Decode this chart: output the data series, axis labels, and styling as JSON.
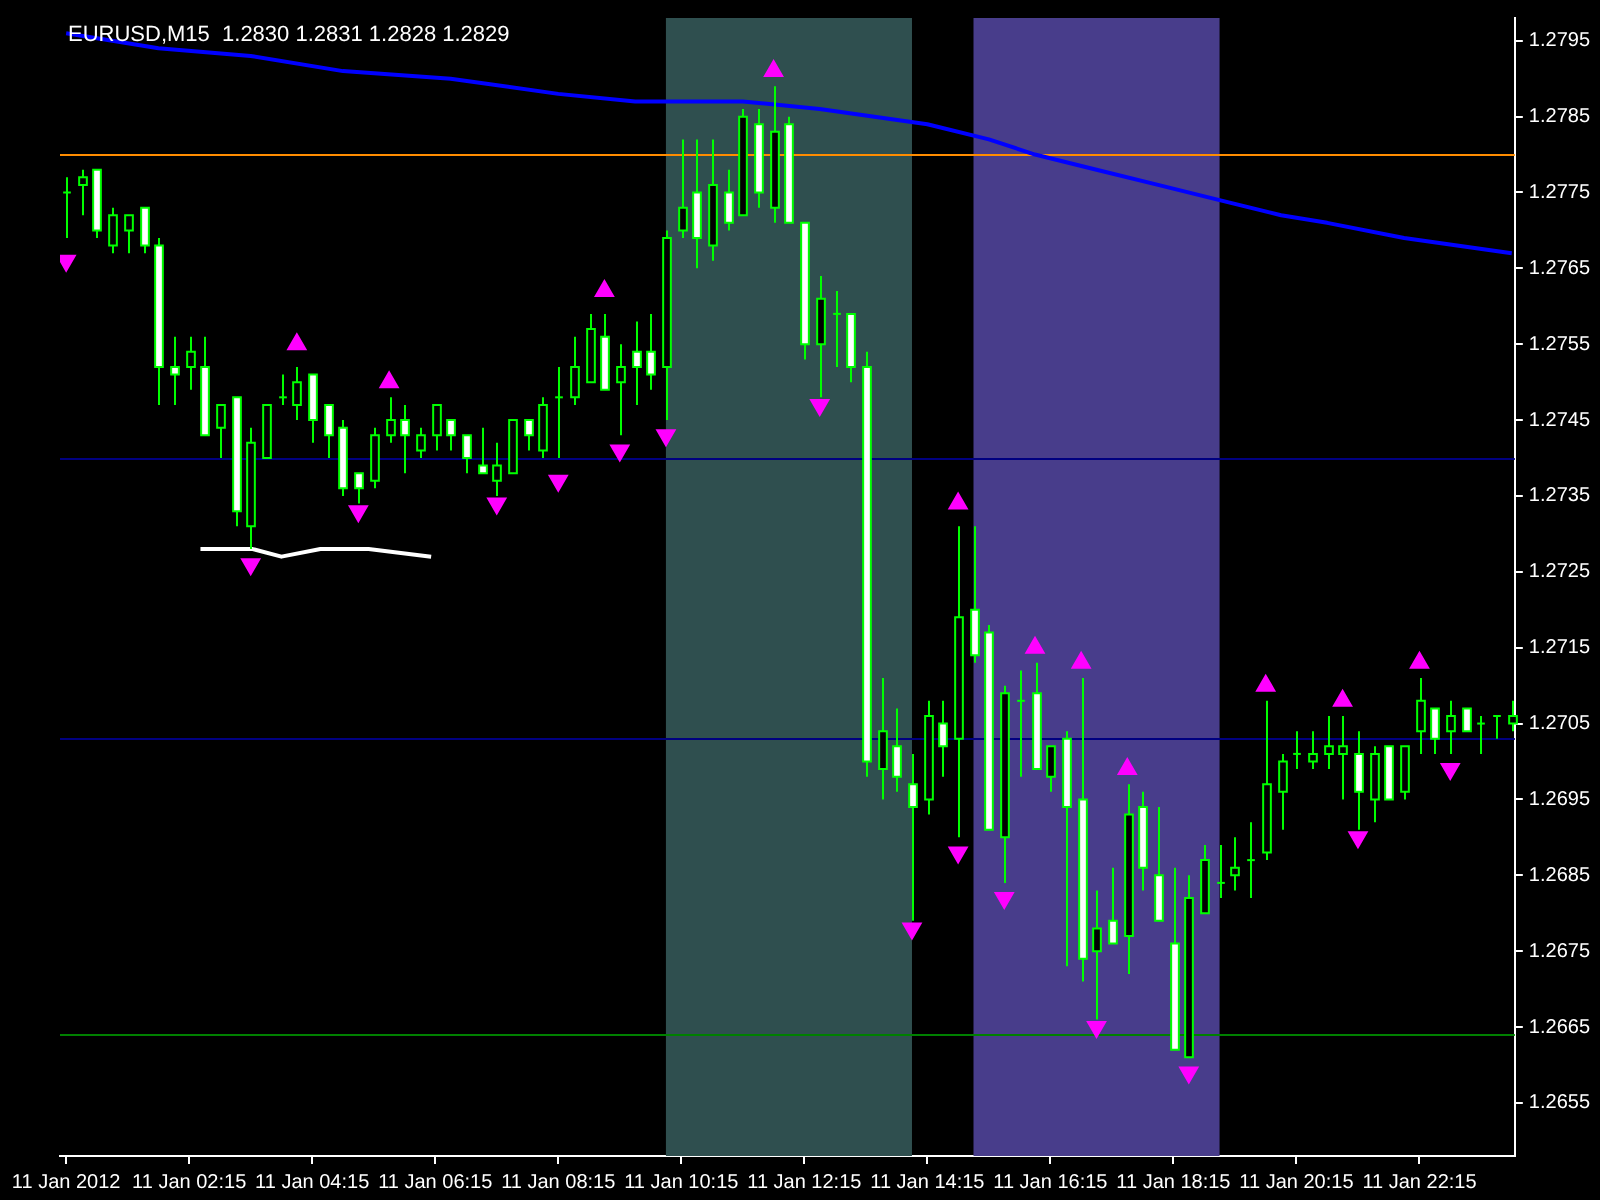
{
  "chart_data": {
    "type": "candlestick",
    "title": "EURUSD,M15  1.2830 1.2831 1.2828 1.2829",
    "color": "#00ff00",
    "colors": [
      "#00ff00",
      "#000000",
      "#ffffff",
      "#000000",
      "#000000",
      "#ffffff",
      "#ffffff",
      "#ffffff",
      "#000000",
      "#ffffff",
      "#000000",
      "#ffffff",
      "#000000",
      "#000000",
      "#00ff00",
      "#000000",
      "#ffffff",
      "#ffffff",
      "#ffffff",
      "#ffffff",
      "#000000",
      "#000000",
      "#ffffff",
      "#000000",
      "#000000",
      "#ffffff",
      "#ffffff",
      "#ffffff",
      "#000000",
      "#000000",
      "#ffffff",
      "#000000",
      "#00ff00",
      "#000000",
      "#000000",
      "#ffffff",
      "#000000",
      "#ffffff",
      "#ffffff",
      "#000000",
      "#000000",
      "#ffffff",
      "#000000",
      "#ffffff",
      "#000000",
      "#ffffff",
      "#000000",
      "#ffffff",
      "#ffffff",
      "#000000",
      "#00ff00",
      "#ffffff",
      "#ffffff",
      "#000000",
      "#ffffff",
      "#ffffff",
      "#000000",
      "#ffffff",
      "#000000",
      "#ffffff",
      "#ffffff",
      "#000000",
      "#00ff00",
      "#ffffff",
      "#000000",
      "#ffffff",
      "#ffffff",
      "#000000",
      "#ffffff",
      "#000000",
      "#ffffff",
      "#ffffff",
      "#ffffff",
      "#000000",
      "#000000",
      "#00ff00",
      "#000000",
      "#00ff00",
      "#000000",
      "#000000",
      "#00ff00",
      "#000000",
      "#000000",
      "#000000",
      "#ffffff",
      "#000000",
      "#ffffff",
      "#000000",
      "#000000",
      "#ffffff",
      "#000000",
      "#ffffff",
      "#00ff00",
      "#00ff00",
      "#000000"
    ],
    "x": [
      "2012-01-11T00:15",
      "2012-01-11T00:30",
      "2012-01-11T00:45",
      "2012-01-11T01:00",
      "2012-01-11T01:15",
      "2012-01-11T01:30",
      "2012-01-11T01:45",
      "2012-01-11T02:00",
      "2012-01-11T02:15",
      "2012-01-11T02:30",
      "2012-01-11T02:45",
      "2012-01-11T03:00",
      "2012-01-11T03:15",
      "2012-01-11T03:30",
      "2012-01-11T03:45",
      "2012-01-11T04:00",
      "2012-01-11T04:15",
      "2012-01-11T04:30",
      "2012-01-11T04:45",
      "2012-01-11T05:00",
      "2012-01-11T05:15",
      "2012-01-11T05:30",
      "2012-01-11T05:45",
      "2012-01-11T06:00",
      "2012-01-11T06:15",
      "2012-01-11T06:30",
      "2012-01-11T06:45",
      "2012-01-11T07:00",
      "2012-01-11T07:15",
      "2012-01-11T07:30",
      "2012-01-11T07:45",
      "2012-01-11T08:00",
      "2012-01-11T08:15",
      "2012-01-11T08:30",
      "2012-01-11T08:45",
      "2012-01-11T09:00",
      "2012-01-11T09:15",
      "2012-01-11T09:30",
      "2012-01-11T09:45",
      "2012-01-11T10:00",
      "2012-01-11T10:15",
      "2012-01-11T10:30",
      "2012-01-11T10:45",
      "2012-01-11T11:00",
      "2012-01-11T11:15",
      "2012-01-11T11:30",
      "2012-01-11T11:45",
      "2012-01-11T12:00",
      "2012-01-11T12:15",
      "2012-01-11T12:30",
      "2012-01-11T12:45",
      "2012-01-11T13:00",
      "2012-01-11T13:15",
      "2012-01-11T13:30",
      "2012-01-11T13:45",
      "2012-01-11T14:00",
      "2012-01-11T14:15",
      "2012-01-11T14:30",
      "2012-01-11T14:45",
      "2012-01-11T15:00",
      "2012-01-11T15:15",
      "2012-01-11T15:30",
      "2012-01-11T15:45",
      "2012-01-11T16:00",
      "2012-01-11T16:15",
      "2012-01-11T16:30",
      "2012-01-11T16:45",
      "2012-01-11T17:00",
      "2012-01-11T17:15",
      "2012-01-11T17:30",
      "2012-01-11T17:45",
      "2012-01-11T18:00",
      "2012-01-11T18:15",
      "2012-01-11T18:30",
      "2012-01-11T18:45",
      "2012-01-11T19:00",
      "2012-01-11T19:15",
      "2012-01-11T19:30",
      "2012-01-11T19:45",
      "2012-01-11T20:00",
      "2012-01-11T20:15",
      "2012-01-11T20:30",
      "2012-01-11T20:45",
      "2012-01-11T21:00",
      "2012-01-11T21:15",
      "2012-01-11T21:30",
      "2012-01-11T21:45",
      "2012-01-11T22:00",
      "2012-01-11T22:15",
      "2012-01-11T22:30",
      "2012-01-11T22:45",
      "2012-01-11T23:00",
      "2012-01-11T23:15",
      "2012-01-11T23:30",
      "2012-01-11T23:45"
    ],
    "ohlc": [
      [
        1.2775,
        1.2777,
        1.2769,
        1.2775
      ],
      [
        1.2776,
        1.2778,
        1.2772,
        1.2777
      ],
      [
        1.2778,
        1.2778,
        1.2769,
        1.277
      ],
      [
        1.2768,
        1.2773,
        1.2767,
        1.2772
      ],
      [
        1.277,
        1.2772,
        1.2767,
        1.2772
      ],
      [
        1.2773,
        1.2773,
        1.2767,
        1.2768
      ],
      [
        1.2768,
        1.2769,
        1.2747,
        1.2752
      ],
      [
        1.2752,
        1.2756,
        1.2747,
        1.2751
      ],
      [
        1.2752,
        1.2756,
        1.2749,
        1.2754
      ],
      [
        1.2752,
        1.2756,
        1.2743,
        1.2743
      ],
      [
        1.2744,
        1.2747,
        1.274,
        1.2747
      ],
      [
        1.2748,
        1.2748,
        1.2731,
        1.2733
      ],
      [
        1.2731,
        1.2744,
        1.2728,
        1.2742
      ],
      [
        1.274,
        1.2747,
        1.274,
        1.2747
      ],
      [
        1.2748,
        1.2751,
        1.2747,
        1.2748
      ],
      [
        1.2747,
        1.2752,
        1.2745,
        1.275
      ],
      [
        1.2751,
        1.2751,
        1.2742,
        1.2745
      ],
      [
        1.2747,
        1.2747,
        1.274,
        1.2743
      ],
      [
        1.2744,
        1.2745,
        1.2735,
        1.2736
      ],
      [
        1.2738,
        1.2738,
        1.2734,
        1.2736
      ],
      [
        1.2737,
        1.2744,
        1.2736,
        1.2743
      ],
      [
        1.2743,
        1.2748,
        1.2742,
        1.2745
      ],
      [
        1.2745,
        1.2747,
        1.2738,
        1.2743
      ],
      [
        1.2741,
        1.2744,
        1.274,
        1.2743
      ],
      [
        1.2743,
        1.2747,
        1.2741,
        1.2747
      ],
      [
        1.2745,
        1.2745,
        1.2741,
        1.2743
      ],
      [
        1.2743,
        1.2743,
        1.2738,
        1.274
      ],
      [
        1.2739,
        1.2744,
        1.2738,
        1.2738
      ],
      [
        1.2737,
        1.2742,
        1.2735,
        1.2739
      ],
      [
        1.2738,
        1.2745,
        1.2738,
        1.2745
      ],
      [
        1.2745,
        1.2745,
        1.2741,
        1.2743
      ],
      [
        1.2741,
        1.2748,
        1.274,
        1.2747
      ],
      [
        1.2748,
        1.2752,
        1.274,
        1.2748
      ],
      [
        1.2748,
        1.2756,
        1.2747,
        1.2752
      ],
      [
        1.275,
        1.2759,
        1.275,
        1.2757
      ],
      [
        1.2756,
        1.2759,
        1.2749,
        1.2749
      ],
      [
        1.275,
        1.2755,
        1.2743,
        1.2752
      ],
      [
        1.2754,
        1.2758,
        1.2747,
        1.2752
      ],
      [
        1.2754,
        1.2759,
        1.2749,
        1.2751
      ],
      [
        1.2752,
        1.277,
        1.2745,
        1.2769
      ],
      [
        1.277,
        1.2782,
        1.2769,
        1.2773
      ],
      [
        1.2775,
        1.2782,
        1.2765,
        1.2769
      ],
      [
        1.2768,
        1.2782,
        1.2766,
        1.2776
      ],
      [
        1.2775,
        1.2778,
        1.277,
        1.2771
      ],
      [
        1.2772,
        1.2786,
        1.2772,
        1.2785
      ],
      [
        1.2784,
        1.2786,
        1.2773,
        1.2775
      ],
      [
        1.2773,
        1.2789,
        1.2771,
        1.2783
      ],
      [
        1.2784,
        1.2785,
        1.2771,
        1.2771
      ],
      [
        1.2771,
        1.2771,
        1.2753,
        1.2755
      ],
      [
        1.2755,
        1.2764,
        1.2748,
        1.2761
      ],
      [
        1.2759,
        1.2762,
        1.2752,
        1.2759
      ],
      [
        1.2759,
        1.2759,
        1.275,
        1.2752
      ],
      [
        1.2752,
        1.2754,
        1.2698,
        1.27
      ],
      [
        1.2699,
        1.2711,
        1.2695,
        1.2704
      ],
      [
        1.2702,
        1.2707,
        1.2696,
        1.2698
      ],
      [
        1.2697,
        1.2701,
        1.2679,
        1.2694
      ],
      [
        1.2695,
        1.2708,
        1.2693,
        1.2706
      ],
      [
        1.2705,
        1.2708,
        1.2698,
        1.2702
      ],
      [
        1.2703,
        1.2731,
        1.269,
        1.2719
      ],
      [
        1.272,
        1.2731,
        1.2713,
        1.2714
      ],
      [
        1.2717,
        1.2718,
        1.2691,
        1.2691
      ],
      [
        1.269,
        1.271,
        1.2684,
        1.2709
      ],
      [
        1.2708,
        1.2712,
        1.2698,
        1.2708
      ],
      [
        1.2709,
        1.2713,
        1.2699,
        1.2699
      ],
      [
        1.2698,
        1.2702,
        1.2696,
        1.2702
      ],
      [
        1.2703,
        1.2704,
        1.2673,
        1.2694
      ],
      [
        1.2695,
        1.2711,
        1.2671,
        1.2674
      ],
      [
        1.2675,
        1.2683,
        1.2666,
        1.2678
      ],
      [
        1.2679,
        1.2686,
        1.2676,
        1.2676
      ],
      [
        1.2677,
        1.2697,
        1.2672,
        1.2693
      ],
      [
        1.2694,
        1.2696,
        1.2683,
        1.2686
      ],
      [
        1.2685,
        1.2694,
        1.2679,
        1.2679
      ],
      [
        1.2676,
        1.2686,
        1.2662,
        1.2662
      ],
      [
        1.2661,
        1.2685,
        1.2661,
        1.2682
      ],
      [
        1.268,
        1.2689,
        1.268,
        1.2687
      ],
      [
        1.2684,
        1.2689,
        1.2682,
        1.2684
      ],
      [
        1.2685,
        1.269,
        1.2683,
        1.2686
      ],
      [
        1.2687,
        1.2692,
        1.2682,
        1.2687
      ],
      [
        1.2688,
        1.2708,
        1.2687,
        1.2697
      ],
      [
        1.2696,
        1.2701,
        1.2691,
        1.27
      ],
      [
        1.2701,
        1.2704,
        1.2699,
        1.2701
      ],
      [
        1.27,
        1.2704,
        1.2699,
        1.2701
      ],
      [
        1.2701,
        1.2706,
        1.2699,
        1.2702
      ],
      [
        1.2701,
        1.2706,
        1.2695,
        1.2702
      ],
      [
        1.2701,
        1.2704,
        1.2691,
        1.2696
      ],
      [
        1.2695,
        1.2702,
        1.2692,
        1.2701
      ],
      [
        1.2702,
        1.2702,
        1.2695,
        1.2695
      ],
      [
        1.2696,
        1.2702,
        1.2695,
        1.2702
      ],
      [
        1.2704,
        1.2711,
        1.2701,
        1.2708
      ],
      [
        1.2707,
        1.2707,
        1.2701,
        1.2703
      ],
      [
        1.2704,
        1.2708,
        1.2701,
        1.2706
      ],
      [
        1.2707,
        1.2707,
        1.2704,
        1.2704
      ],
      [
        1.2705,
        1.2706,
        1.2701,
        1.2705
      ],
      [
        1.2706,
        1.2706,
        1.2703,
        1.2706
      ],
      [
        1.2705,
        1.2708,
        1.2704,
        1.2706
      ]
    ],
    "series": [
      {
        "type": "line",
        "color": "#0000ff",
        "x": [
          "2012-01-11T00:15",
          "2012-01-11T01:45",
          "2012-01-11T03:15",
          "2012-01-11T04:45",
          "2012-01-11T06:30",
          "2012-01-11T08:15",
          "2012-01-11T09:30",
          "2012-01-11T10:15",
          "2012-01-11T11:15",
          "2012-01-11T12:30",
          "2012-01-11T14:15",
          "2012-01-11T15:15",
          "2012-01-11T16:00",
          "2012-01-11T17:00",
          "2012-01-11T18:00",
          "2012-01-11T19:00",
          "2012-01-11T20:00",
          "2012-01-11T20:45",
          "2012-01-11T22:00",
          "2012-01-11T23:45"
        ],
        "values": [
          1.2796,
          1.2794,
          1.2793,
          1.2791,
          1.279,
          1.2788,
          1.2787,
          1.2787,
          1.2787,
          1.2786,
          1.2784,
          1.2782,
          1.278,
          1.2778,
          1.2776,
          1.2774,
          1.2772,
          1.2771,
          1.2769,
          1.2767
        ]
      },
      {
        "type": "line",
        "color": "#ffffff",
        "x": [
          "2012-01-11T02:26",
          "2012-01-11T03:17",
          "2012-01-11T03:45",
          "2012-01-11T04:23",
          "2012-01-11T05:10",
          "2012-01-11T06:11"
        ],
        "values": [
          1.2728,
          1.2728,
          1.2727,
          1.2728,
          1.2728,
          1.2727
        ]
      },
      {
        "type": "scatter",
        "color": "#ff00ff",
        "marker": "triangle",
        "x": [
          "2012-01-11T04:00",
          "2012-01-11T05:30",
          "2012-01-11T09:00",
          "2012-01-11T11:45",
          "2012-01-11T14:45",
          "2012-01-11T16:00",
          "2012-01-11T16:45",
          "2012-01-11T17:30",
          "2012-01-11T19:45",
          "2012-01-11T21:00",
          "2012-01-11T22:15"
        ],
        "values": [
          1.2755,
          1.275,
          1.2762,
          1.2791,
          1.2734,
          1.2715,
          1.2713,
          1.2699,
          1.271,
          1.2708,
          1.2713
        ]
      },
      {
        "type": "scatter",
        "color": "#ff00ff",
        "marker": "triangle",
        "x": [
          "2012-01-11T00:15",
          "2012-01-11T03:15",
          "2012-01-11T05:00",
          "2012-01-11T07:15",
          "2012-01-11T08:15",
          "2012-01-11T09:15",
          "2012-01-11T10:00",
          "2012-01-11T12:30",
          "2012-01-11T14:00",
          "2012-01-11T14:45",
          "2012-01-11T15:30",
          "2012-01-11T17:00",
          "2012-01-11T18:30",
          "2012-01-11T21:15",
          "2012-01-11T22:45"
        ],
        "values": [
          1.2766,
          1.2726,
          1.2733,
          1.2734,
          1.2737,
          1.2741,
          1.2743,
          1.2747,
          1.2678,
          1.2688,
          1.2682,
          1.2665,
          1.2659,
          1.269,
          1.2699
        ]
      }
    ],
    "xlim": [
      "2012-01-11T00:09",
      "2012-01-11T23:48"
    ],
    "xticks": [
      {
        "value": "2012-01-11T00:15",
        "label": "11 Jan 2012"
      },
      {
        "value": "2012-01-11T02:15",
        "label": "11 Jan 02:15"
      },
      {
        "value": "2012-01-11T04:15",
        "label": "11 Jan 04:15"
      },
      {
        "value": "2012-01-11T06:15",
        "label": "11 Jan 06:15"
      },
      {
        "value": "2012-01-11T08:15",
        "label": "11 Jan 08:15"
      },
      {
        "value": "2012-01-11T10:15",
        "label": "11 Jan 10:15"
      },
      {
        "value": "2012-01-11T12:15",
        "label": "11 Jan 12:15"
      },
      {
        "value": "2012-01-11T14:15",
        "label": "11 Jan 14:15"
      },
      {
        "value": "2012-01-11T16:15",
        "label": "11 Jan 16:15"
      },
      {
        "value": "2012-01-11T18:15",
        "label": "11 Jan 18:15"
      },
      {
        "value": "2012-01-11T20:15",
        "label": "11 Jan 20:15"
      },
      {
        "value": "2012-01-11T22:15",
        "label": "11 Jan 22:15"
      }
    ],
    "ylim": [
      1.2648,
      1.2798
    ],
    "yticks": [
      1.2655,
      1.2665,
      1.2675,
      1.2685,
      1.2695,
      1.2705,
      1.2715,
      1.2725,
      1.2735,
      1.2745,
      1.2755,
      1.2765,
      1.2775,
      1.2785,
      1.2795
    ],
    "ref_lines": [
      {
        "axis": "y",
        "value": 1.278,
        "color": "#ff8c00"
      },
      {
        "axis": "y",
        "value": 1.274,
        "color": "#000080"
      },
      {
        "axis": "y",
        "value": 1.2703,
        "color": "#000080"
      },
      {
        "axis": "y",
        "value": 1.2664,
        "color": "#008000"
      }
    ],
    "bands": [
      {
        "axis": "x",
        "from": "2012-01-11T10:00",
        "to": "2012-01-11T14:00",
        "color": "#2f4f4f"
      },
      {
        "axis": "x",
        "from": "2012-01-11T15:00",
        "to": "2012-01-11T19:00",
        "color": "#483d8b"
      }
    ],
    "grid": false,
    "legend": false
  }
}
